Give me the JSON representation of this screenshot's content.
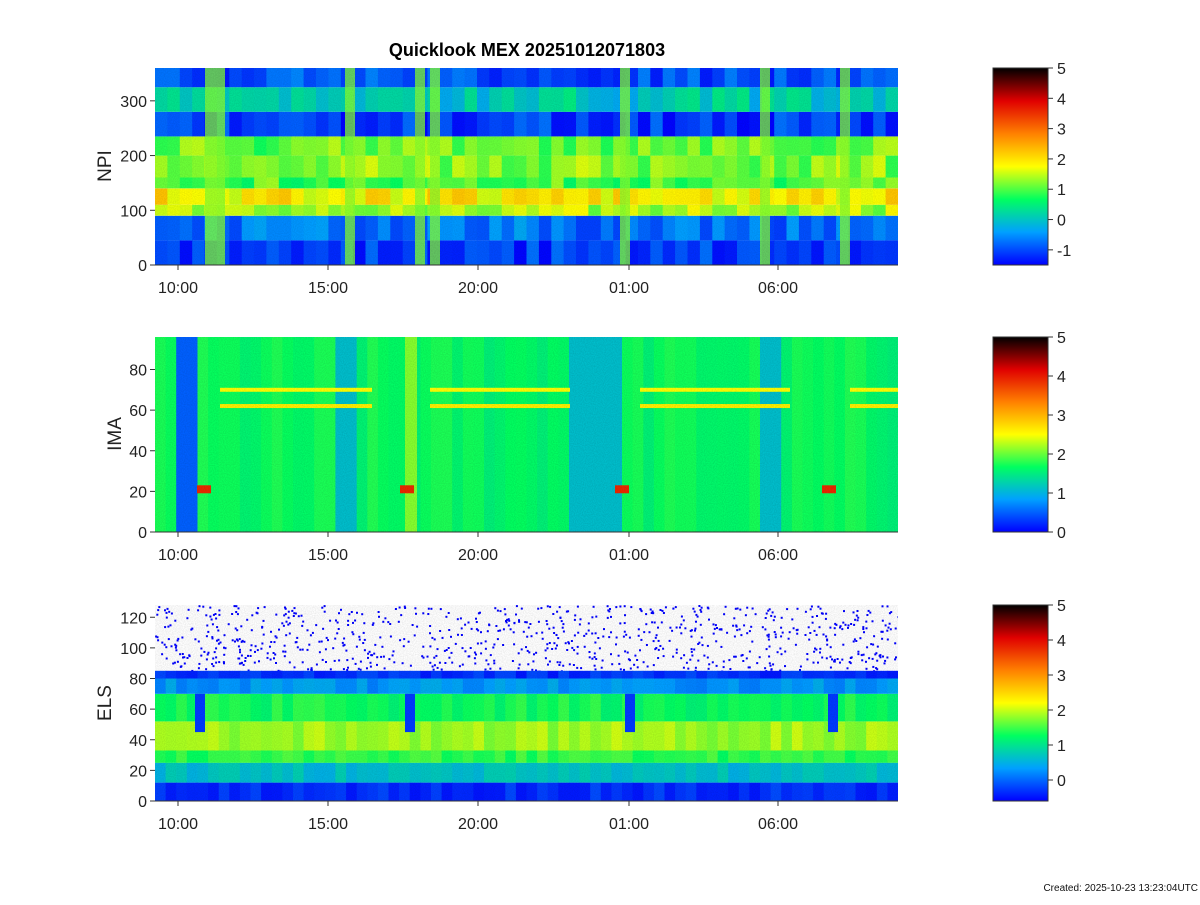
{
  "title": "Quicklook MEX 20251012071803",
  "created": "Created: 2025-10-23 13:23:04UTC",
  "colors": {
    "colormap": [
      "#0000ff",
      "#00a0ff",
      "#00ff60",
      "#ffff00",
      "#ff8000",
      "#e00000",
      "#000000"
    ]
  },
  "chart_data": [
    {
      "type": "heatmap",
      "ylabel": "NPI",
      "ylim": [
        0,
        360
      ],
      "yticks": [
        0,
        100,
        200,
        300
      ],
      "xticks": [
        "10:00",
        "15:00",
        "20:00",
        "01:00",
        "06:00"
      ],
      "colorbar": {
        "range": [
          -1.5,
          5
        ],
        "ticks": [
          -1,
          0,
          1,
          2,
          3,
          4,
          5
        ]
      }
    },
    {
      "type": "heatmap",
      "ylabel": "IMA",
      "ylim": [
        0,
        96
      ],
      "yticks": [
        0,
        20,
        40,
        60,
        80
      ],
      "xticks": [
        "10:00",
        "15:00",
        "20:00",
        "01:00",
        "06:00"
      ],
      "colorbar": {
        "range": [
          0,
          5
        ],
        "ticks": [
          0,
          1,
          2,
          3,
          4,
          5
        ]
      }
    },
    {
      "type": "heatmap",
      "ylabel": "ELS",
      "ylim": [
        0,
        128
      ],
      "yticks": [
        0,
        20,
        40,
        60,
        80,
        100,
        120
      ],
      "xticks": [
        "10:00",
        "15:00",
        "20:00",
        "01:00",
        "06:00"
      ],
      "colorbar": {
        "range": [
          -0.6,
          5
        ],
        "ticks": [
          0,
          1,
          2,
          3,
          4,
          5
        ]
      }
    }
  ]
}
